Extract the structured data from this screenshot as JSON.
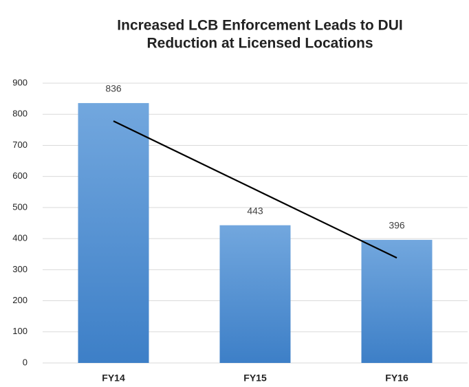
{
  "chart_data": {
    "type": "bar",
    "title": [
      "Increased LCB Enforcement Leads to DUI",
      "Reduction at Licensed Locations"
    ],
    "categories": [
      "FY14",
      "FY15",
      "FY16"
    ],
    "values": [
      836,
      443,
      396
    ],
    "color": "#5b9bd5",
    "trendline": {
      "color": "#000000",
      "values": [
        778,
        558,
        338
      ]
    },
    "ylim": [
      0,
      900
    ],
    "yticks": [
      0,
      100,
      200,
      300,
      400,
      500,
      600,
      700,
      800,
      900
    ],
    "grid": true
  }
}
